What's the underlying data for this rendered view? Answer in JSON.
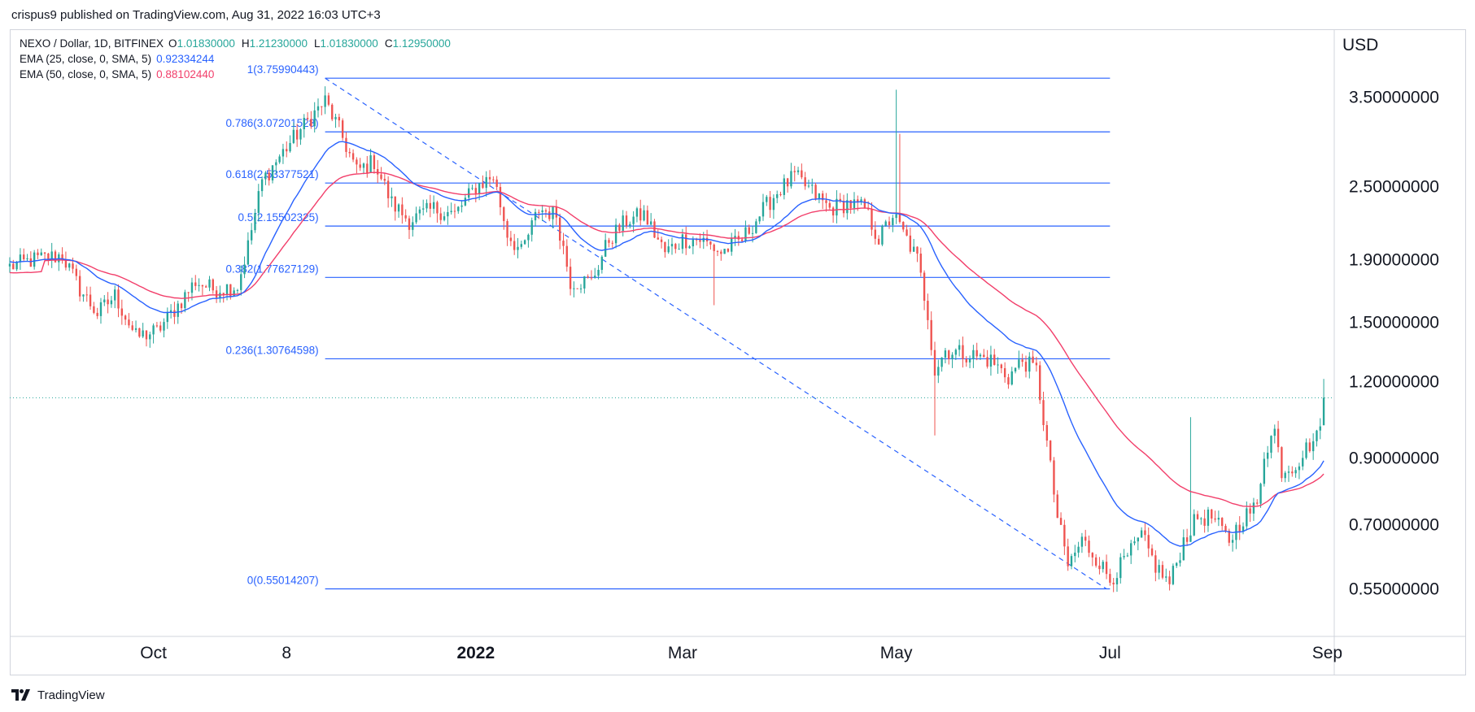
{
  "attribution": "crispus9 published on TradingView.com, Aug 31, 2022 16:03 UTC+3",
  "legend": {
    "symbol": "NEXO / Dollar, 1D, BITFINEX",
    "o_label": "O",
    "o_value": "1.01830000",
    "h_label": "H",
    "h_value": "1.21230000",
    "l_label": "L",
    "l_value": "1.01830000",
    "c_label": "C",
    "c_value": "1.12950000",
    "ema25_label": "EMA (25, close, 0, SMA, 5)",
    "ema25_value": "0.92334244",
    "ema50_label": "EMA (50, close, 0, SMA, 5)",
    "ema50_value": "0.88102440"
  },
  "footer": {
    "brand": "TradingView"
  },
  "colors": {
    "up": "#26a69a",
    "down": "#ef5350",
    "ema25": "#2962ff",
    "ema50": "#f23f6b",
    "fib": "#2962ff",
    "grid_border": "#d1d4dc",
    "price_line": "#26a69a"
  },
  "chart_data": {
    "type": "candlestick",
    "currency_label": "USD",
    "scale": "log",
    "ylim": [
      0.46,
      4.2
    ],
    "x_ticks": [
      {
        "label": "Oct",
        "date": "2021-10-01",
        "bold": false
      },
      {
        "label": "8",
        "date": "2021-11-08",
        "bold": false
      },
      {
        "label": "2022",
        "date": "2022-01-01",
        "bold": true
      },
      {
        "label": "Mar",
        "date": "2022-03-01",
        "bold": false
      },
      {
        "label": "May",
        "date": "2022-05-01",
        "bold": false
      },
      {
        "label": "Jul",
        "date": "2022-07-01",
        "bold": false
      },
      {
        "label": "Sep",
        "date": "2022-09-01",
        "bold": false
      }
    ],
    "y_ticks": [
      {
        "label": "3.50000000",
        "value": 3.5
      },
      {
        "label": "2.50000000",
        "value": 2.5
      },
      {
        "label": "1.90000000",
        "value": 1.9
      },
      {
        "label": "1.50000000",
        "value": 1.5
      },
      {
        "label": "1.20000000",
        "value": 1.2
      },
      {
        "label": "0.90000000",
        "value": 0.9
      },
      {
        "label": "0.70000000",
        "value": 0.7
      },
      {
        "label": "0.55000000",
        "value": 0.55
      }
    ],
    "x_range": [
      "2021-08-21",
      "2022-09-03"
    ],
    "fib_retracement": {
      "start": {
        "date": "2021-11-19",
        "value": 3.75990443
      },
      "end": {
        "date": "2022-06-30",
        "value": 0.55014207
      },
      "right_end": "2022-07-01",
      "levels": [
        {
          "ratio_label": "1",
          "value_label": "3.75990443",
          "value": 3.75990443
        },
        {
          "ratio_label": "0.786",
          "value_label": "3.07201528",
          "value": 3.07201528
        },
        {
          "ratio_label": "0.618",
          "value_label": "2.53377521",
          "value": 2.53377521
        },
        {
          "ratio_label": "0.5",
          "value_label": "2.15502325",
          "value": 2.15502325
        },
        {
          "ratio_label": "0.382",
          "value_label": "1.77627129",
          "value": 1.77627129
        },
        {
          "ratio_label": "0.236",
          "value_label": "1.30764598",
          "value": 1.30764598
        },
        {
          "ratio_label": "0",
          "value_label": "0.55014207",
          "value": 0.55014207
        }
      ]
    },
    "last_price": 1.1295,
    "anchors": [
      [
        "2021-08-21",
        1.85
      ],
      [
        "2021-08-28",
        1.9
      ],
      [
        "2021-09-05",
        1.93
      ],
      [
        "2021-09-10",
        1.7
      ],
      [
        "2021-09-15",
        1.55
      ],
      [
        "2021-09-20",
        1.66
      ],
      [
        "2021-09-26",
        1.42
      ],
      [
        "2021-10-02",
        1.45
      ],
      [
        "2021-10-08",
        1.6
      ],
      [
        "2021-10-13",
        1.75
      ],
      [
        "2021-10-18",
        1.7
      ],
      [
        "2021-10-25",
        1.72
      ],
      [
        "2021-10-28",
        2.0
      ],
      [
        "2021-11-01",
        2.55
      ],
      [
        "2021-11-05",
        2.75
      ],
      [
        "2021-11-10",
        3.0
      ],
      [
        "2021-11-14",
        3.2
      ],
      [
        "2021-11-19",
        3.45
      ],
      [
        "2021-11-23",
        3.1
      ],
      [
        "2021-11-28",
        2.65
      ],
      [
        "2021-12-03",
        2.75
      ],
      [
        "2021-12-08",
        2.35
      ],
      [
        "2021-12-13",
        2.2
      ],
      [
        "2021-12-20",
        2.3
      ],
      [
        "2021-12-26",
        2.25
      ],
      [
        "2022-01-01",
        2.5
      ],
      [
        "2022-01-06",
        2.6
      ],
      [
        "2022-01-10",
        2.1
      ],
      [
        "2022-01-14",
        1.95
      ],
      [
        "2022-01-19",
        2.3
      ],
      [
        "2022-01-24",
        2.25
      ],
      [
        "2022-01-28",
        1.75
      ],
      [
        "2022-02-03",
        1.75
      ],
      [
        "2022-02-08",
        2.05
      ],
      [
        "2022-02-13",
        2.2
      ],
      [
        "2022-02-18",
        2.25
      ],
      [
        "2022-02-24",
        1.95
      ],
      [
        "2022-03-01",
        2.05
      ],
      [
        "2022-03-06",
        2.05
      ],
      [
        "2022-03-12",
        1.95
      ],
      [
        "2022-03-18",
        2.05
      ],
      [
        "2022-03-23",
        2.25
      ],
      [
        "2022-03-28",
        2.45
      ],
      [
        "2022-04-02",
        2.6
      ],
      [
        "2022-04-07",
        2.45
      ],
      [
        "2022-04-12",
        2.3
      ],
      [
        "2022-04-17",
        2.35
      ],
      [
        "2022-04-22",
        2.3
      ],
      [
        "2022-04-26",
        2.05
      ],
      [
        "2022-04-30",
        2.25
      ],
      [
        "2022-05-04",
        2.05
      ],
      [
        "2022-05-07",
        1.9
      ],
      [
        "2022-05-10",
        1.55
      ],
      [
        "2022-05-12",
        1.25
      ],
      [
        "2022-05-15",
        1.35
      ],
      [
        "2022-05-22",
        1.33
      ],
      [
        "2022-05-28",
        1.3
      ],
      [
        "2022-06-02",
        1.22
      ],
      [
        "2022-06-06",
        1.3
      ],
      [
        "2022-06-10",
        1.25
      ],
      [
        "2022-06-13",
        0.95
      ],
      [
        "2022-06-16",
        0.72
      ],
      [
        "2022-06-19",
        0.6
      ],
      [
        "2022-06-23",
        0.66
      ],
      [
        "2022-06-27",
        0.62
      ],
      [
        "2022-07-01",
        0.57
      ],
      [
        "2022-07-06",
        0.62
      ],
      [
        "2022-07-10",
        0.67
      ],
      [
        "2022-07-14",
        0.6
      ],
      [
        "2022-07-18",
        0.56
      ],
      [
        "2022-07-22",
        0.66
      ],
      [
        "2022-07-26",
        0.72
      ],
      [
        "2022-07-30",
        0.72
      ],
      [
        "2022-08-04",
        0.66
      ],
      [
        "2022-08-08",
        0.72
      ],
      [
        "2022-08-12",
        0.75
      ],
      [
        "2022-08-14",
        0.92
      ],
      [
        "2022-08-17",
        1.0
      ],
      [
        "2022-08-19",
        0.86
      ],
      [
        "2022-08-23",
        0.88
      ],
      [
        "2022-08-27",
        0.95
      ],
      [
        "2022-08-29",
        0.97
      ],
      [
        "2022-08-31",
        1.1295
      ]
    ],
    "spikes": [
      {
        "date": "2022-05-01",
        "high": 3.6
      },
      {
        "date": "2022-05-02",
        "high": 3.05
      },
      {
        "date": "2022-05-12",
        "low": 0.98
      },
      {
        "date": "2022-07-24",
        "high": 1.05
      },
      {
        "date": "2022-03-10",
        "low": 1.6
      },
      {
        "date": "2022-08-31",
        "high": 1.2123
      }
    ]
  }
}
